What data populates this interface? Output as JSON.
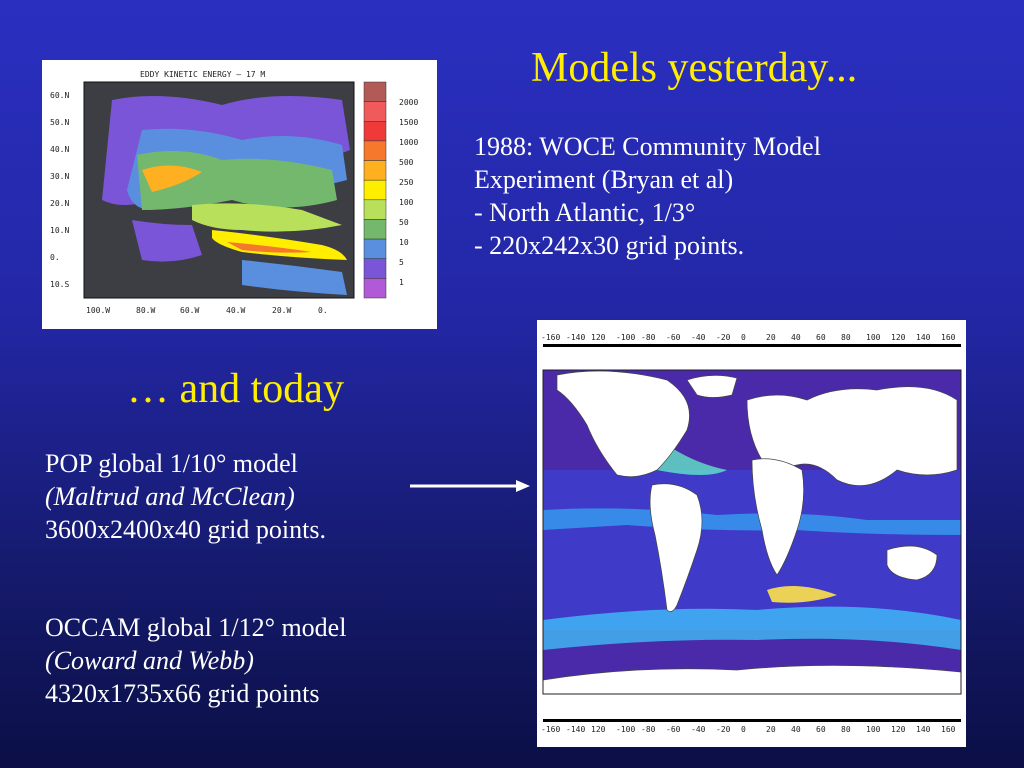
{
  "slide": {
    "title_yesterday": "Models yesterday...",
    "title_today": "… and today",
    "woce_lines": [
      "1988: WOCE Community Model",
      "Experiment (Bryan et al)",
      "- North Atlantic, 1/3°",
      "- 220x242x30 grid points."
    ],
    "pop": {
      "line1": "POP global 1/10° model",
      "authors": "(Maltrud and McClean)",
      "line3": "3600x2400x40 grid points."
    },
    "occam": {
      "line1": "OCCAM global 1/12° model",
      "authors": "(Coward and Webb)",
      "line3": "4320x1735x66 grid points"
    }
  },
  "eke_map": {
    "title": "EDDY KINETIC ENERGY –    17 M",
    "lat_labels": [
      "60.N",
      "50.N",
      "40.N",
      "30.N",
      "20.N",
      "10.N",
      "0.",
      "10.S"
    ],
    "lon_labels": [
      "100.W",
      "80.W",
      "60.W",
      "40.W",
      "20.W",
      "0."
    ],
    "legend_values": [
      "2000",
      "1500",
      "1000",
      "500",
      "250",
      "100",
      "50",
      "10",
      "5",
      "1"
    ],
    "legend_colors": [
      "#b25a55",
      "#f05a5a",
      "#f03a3a",
      "#f5782d",
      "#ffb020",
      "#ffee00",
      "#b8e05a",
      "#74b86e",
      "#5a8fe0",
      "#7a55d8",
      "#b05ad8"
    ]
  },
  "global_map": {
    "lon_labels": [
      "-160",
      "-140",
      "120",
      "-100",
      "-80",
      "-60",
      "-40",
      "-20",
      "0",
      "20",
      "40",
      "60",
      "80",
      "100",
      "120",
      "140",
      "160"
    ]
  },
  "colors": {
    "title": "#ffee00",
    "text": "#ffffff",
    "background_top": "#2a2fc0",
    "background_bottom": "#0b0f45"
  }
}
